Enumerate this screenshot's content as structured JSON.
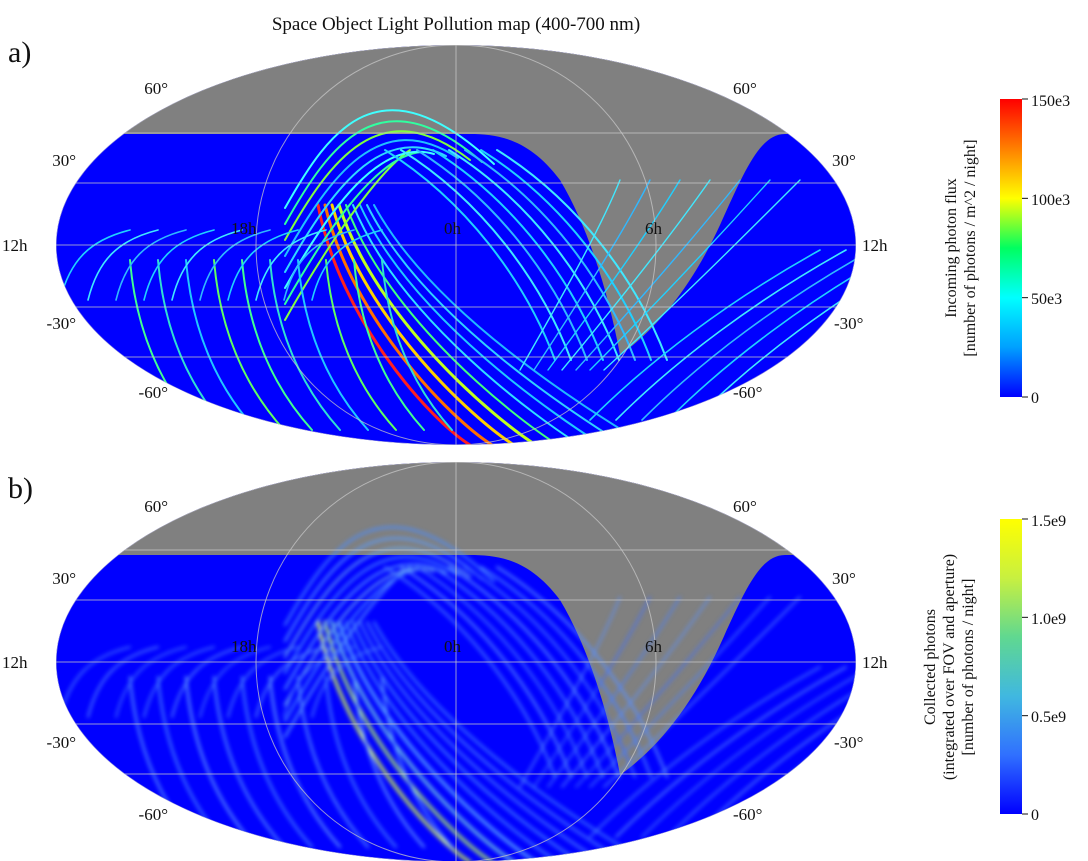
{
  "title": "Space Object Light Pollution map (400-700 nm)",
  "chart_data": [
    {
      "panel": "a)",
      "type": "heatmap",
      "projection": "mollweide",
      "lat_labels": [
        "60°",
        "30°",
        "-30°",
        "-60°"
      ],
      "lon_labels": [
        "12h",
        "18h",
        "0h",
        "6h",
        "12h"
      ],
      "colorbar": {
        "label_lines": [
          "Incoming photon flux",
          "[number of photons / m^2 / night]"
        ],
        "ticks": [
          "150e3",
          "100e3",
          "50e3",
          "0"
        ],
        "tick_values": [
          150000,
          100000,
          50000,
          0
        ],
        "range": [
          0,
          150000
        ],
        "colors": [
          "#0000ff",
          "#00a0ff",
          "#00ffff",
          "#00ff60",
          "#ffff00",
          "#ff8000",
          "#ff0000"
        ]
      }
    },
    {
      "panel": "b)",
      "type": "heatmap",
      "projection": "mollweide",
      "lat_labels": [
        "60°",
        "30°",
        "-30°",
        "-60°"
      ],
      "lon_labels": [
        "12h",
        "18h",
        "0h",
        "6h",
        "12h"
      ],
      "colorbar": {
        "label_lines": [
          "Collected photons",
          "(integrated over FOV and aperture)",
          "[number of photons / night]"
        ],
        "ticks": [
          "1.5e9",
          "1.0e9",
          "0.5e9",
          "0"
        ],
        "tick_values": [
          1500000000,
          1000000000,
          500000000,
          0
        ],
        "range": [
          0,
          1500000000
        ],
        "colors": [
          "#0000ff",
          "#3070ff",
          "#40b8e0",
          "#60d890",
          "#c8f040",
          "#ffff00"
        ]
      }
    }
  ],
  "colors": {
    "map_background": "#0000ff",
    "masked": "#808080",
    "grid": "#c8c8c8"
  }
}
